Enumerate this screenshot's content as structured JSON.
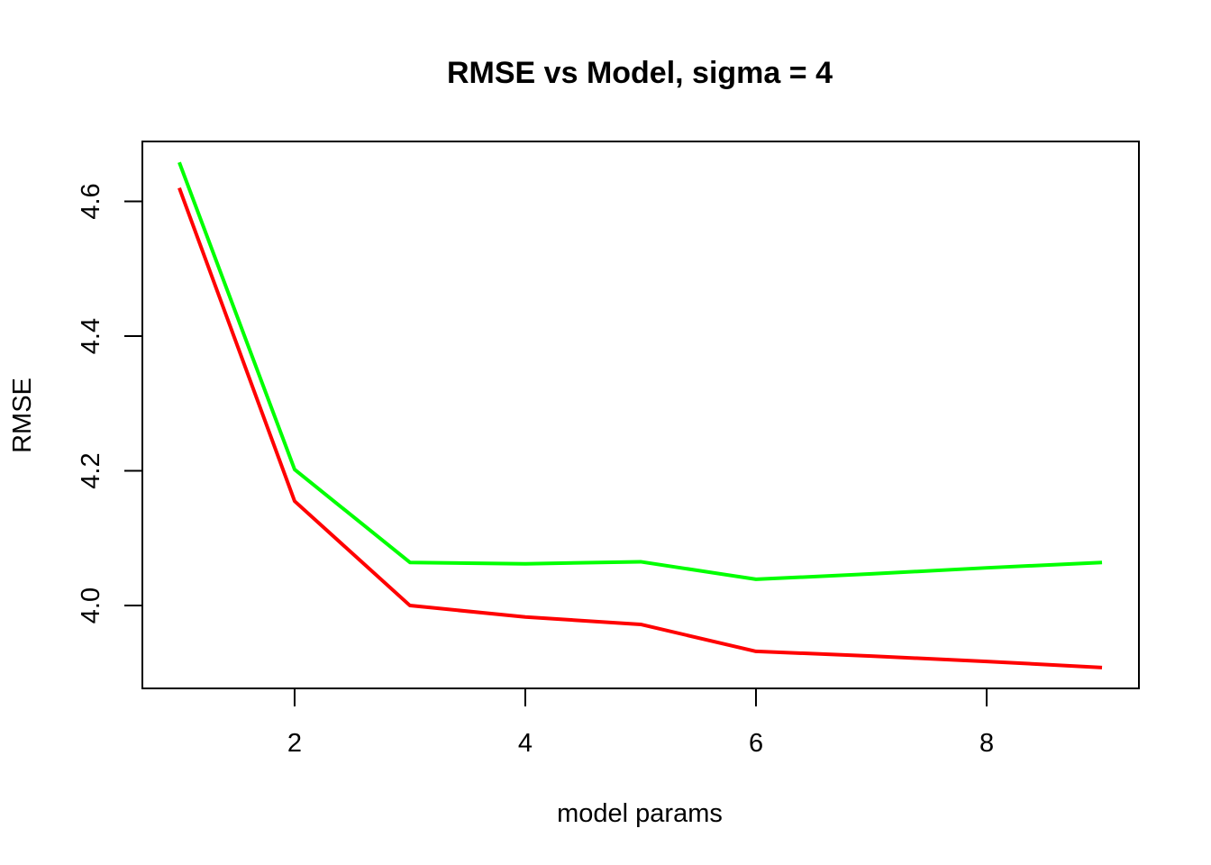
{
  "chart_data": {
    "type": "line",
    "title": "RMSE vs Model, sigma = 4",
    "xlabel": "model params",
    "ylabel": "RMSE",
    "x": [
      1,
      2,
      3,
      4,
      5,
      6,
      7,
      8,
      9
    ],
    "xlim": [
      0.68,
      9.32
    ],
    "ylim": [
      3.877,
      4.689
    ],
    "xticks": [
      2,
      4,
      6,
      8
    ],
    "xtick_labels": [
      "2",
      "4",
      "6",
      "8"
    ],
    "yticks": [
      4.0,
      4.2,
      4.4,
      4.6
    ],
    "ytick_labels": [
      "4.0",
      "4.2",
      "4.4",
      "4.6"
    ],
    "grid": false,
    "legend": "none",
    "series": [
      {
        "color": "#00ff00",
        "values": [
          4.658,
          4.202,
          4.064,
          4.062,
          4.065,
          4.039,
          4.047,
          4.056,
          4.064
        ]
      },
      {
        "color": "#ff0000",
        "values": [
          4.62,
          4.155,
          4.0,
          3.983,
          3.972,
          3.932,
          3.925,
          3.917,
          3.908
        ]
      }
    ]
  }
}
